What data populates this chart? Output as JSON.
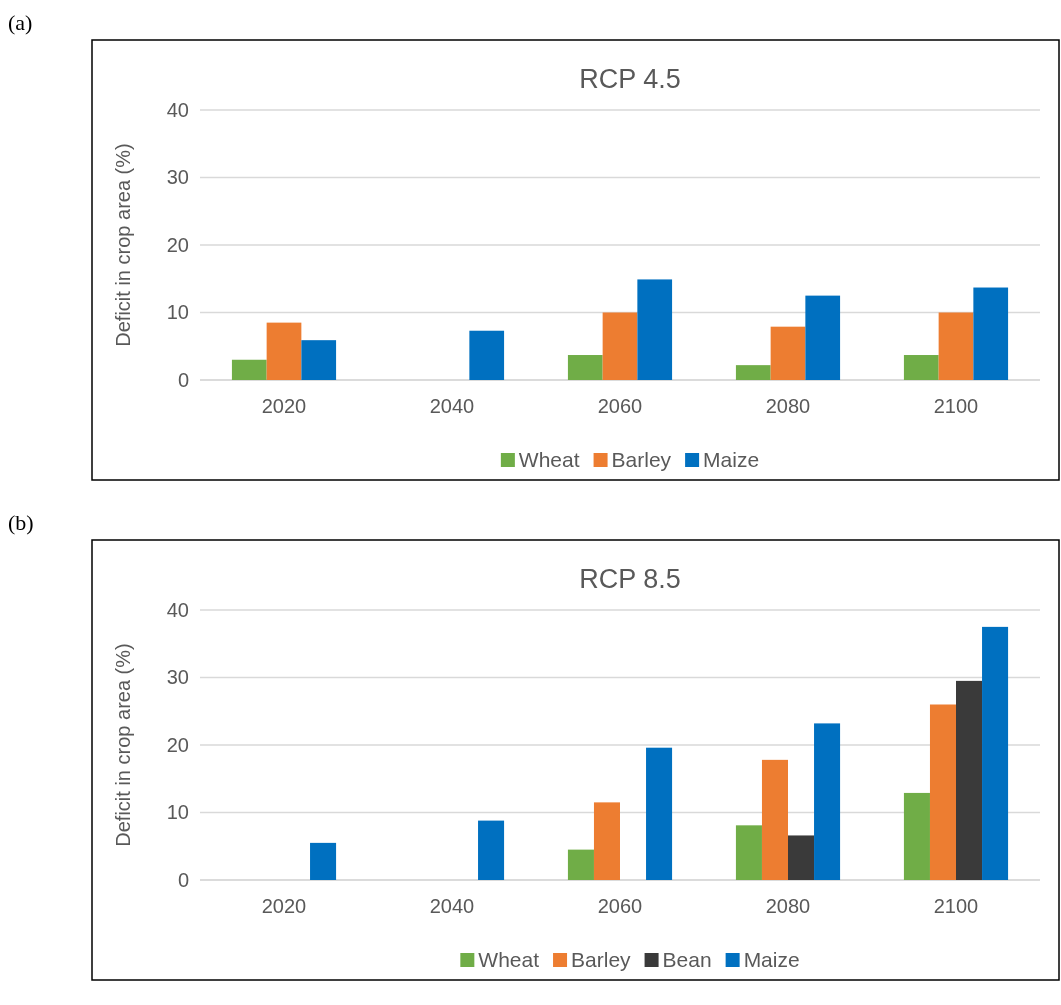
{
  "chart_data": [
    {
      "type": "bar",
      "title": "RCP 4.5",
      "ylabel": "Deficit in crop area (%)",
      "annotations": [
        "(a)"
      ],
      "categories": [
        "2020",
        "2040",
        "2060",
        "2080",
        "2100"
      ],
      "ylim": [
        0,
        40
      ],
      "yticks": [
        0,
        10,
        20,
        30,
        40
      ],
      "grid": "y",
      "legend": "bottom",
      "series": [
        {
          "name": "Wheat",
          "color": "#70ad47",
          "values": [
            3.0,
            null,
            3.7,
            2.2,
            3.7
          ]
        },
        {
          "name": "Barley",
          "color": "#ed7d31",
          "values": [
            8.5,
            null,
            10.0,
            7.9,
            10.0
          ]
        },
        {
          "name": "Maize",
          "color": "#0070c0",
          "values": [
            5.9,
            7.3,
            14.9,
            12.5,
            13.7
          ]
        }
      ]
    },
    {
      "type": "bar",
      "title": "RCP 8.5",
      "ylabel": "Deficit in crop area (%)",
      "annotations": [
        "(b)"
      ],
      "categories": [
        "2020",
        "2040",
        "2060",
        "2080",
        "2100"
      ],
      "ylim": [
        0,
        40
      ],
      "yticks": [
        0,
        10,
        20,
        30,
        40
      ],
      "grid": "y",
      "legend": "bottom",
      "series": [
        {
          "name": "Wheat",
          "color": "#70ad47",
          "values": [
            null,
            null,
            4.5,
            8.1,
            12.9
          ]
        },
        {
          "name": "Barley",
          "color": "#ed7d31",
          "values": [
            null,
            null,
            11.5,
            17.8,
            26.0
          ]
        },
        {
          "name": "Bean",
          "color": "#3a3a3a",
          "values": [
            null,
            null,
            null,
            6.6,
            29.5
          ]
        },
        {
          "name": "Maize",
          "color": "#0070c0",
          "values": [
            5.5,
            8.8,
            19.6,
            23.2,
            37.5
          ]
        }
      ]
    }
  ]
}
